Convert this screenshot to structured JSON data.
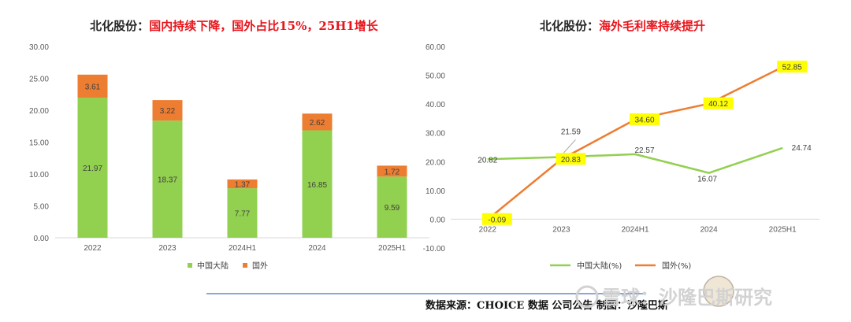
{
  "colors": {
    "domestic": "#92d050",
    "overseas": "#ed7d31",
    "highlight": "#ffff00",
    "title_red": "#e8141b",
    "divider": "#4472c4"
  },
  "chart_data": [
    {
      "type": "bar",
      "stacked": true,
      "title_prefix": "北化股份：",
      "title_main": "国内持续下降，国外占比15%，25H1增长",
      "categories": [
        "2022",
        "2023",
        "2024H1",
        "2024",
        "2025H1"
      ],
      "series": [
        {
          "name": "中国大陆",
          "values": [
            21.97,
            18.37,
            7.77,
            16.85,
            9.59
          ],
          "labels": [
            "21.97",
            "18.37",
            "7.77",
            "16.85",
            "9.59"
          ]
        },
        {
          "name": "国外",
          "values": [
            3.61,
            3.22,
            1.37,
            2.62,
            1.72
          ],
          "labels": [
            "3.61",
            "3.22",
            "1.37",
            "2.62",
            "1.72"
          ]
        }
      ],
      "ylim": [
        0,
        30
      ],
      "yticks": [
        "0.00",
        "5.00",
        "10.00",
        "15.00",
        "20.00",
        "25.00",
        "30.00"
      ],
      "grid": false,
      "legend": "bottom"
    },
    {
      "type": "line",
      "title_prefix": "北化股份：",
      "title_main": "海外毛利率持续提升",
      "categories": [
        "2022",
        "2023",
        "2024H1",
        "2024",
        "2025H1"
      ],
      "series": [
        {
          "name": "中国大陆(%)",
          "values": [
            20.82,
            21.59,
            22.57,
            16.07,
            24.74
          ],
          "labels": [
            "20.82",
            "21.59",
            "22.57",
            "16.07",
            "24.74"
          ]
        },
        {
          "name": "国外(%)",
          "values": [
            -0.09,
            20.83,
            34.6,
            40.12,
            52.85
          ],
          "labels": [
            "-0.09",
            "20.83",
            "34.60",
            "40.12",
            "52.85"
          ]
        }
      ],
      "ylim": [
        -10,
        60
      ],
      "yticks": [
        "-10.00",
        "0.00",
        "10.00",
        "20.00",
        "30.00",
        "40.00",
        "50.00",
        "60.00"
      ],
      "grid": false,
      "legend": "bottom"
    }
  ],
  "source_text": "数据来源：CHOICE 数据 公司公告  制图：沙隆巴斯",
  "watermark_text": "雪球：沙隆巴斯研究"
}
